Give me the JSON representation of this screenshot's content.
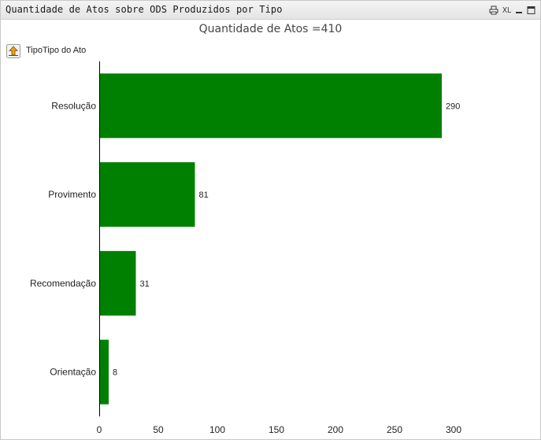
{
  "window": {
    "caption": "Quantidade de Atos sobre ODS Produzidos por Tipo",
    "icons": [
      "print-icon",
      "excel-export-icon",
      "minimize-icon",
      "maximize-icon"
    ],
    "excel_label": "XL"
  },
  "drill": {
    "label": "TipoTipo do Ato",
    "icon": "drill-up-arrow-icon"
  },
  "colors": {
    "bar": "#008000",
    "axis": "#000000"
  },
  "chart_data": {
    "type": "bar",
    "orientation": "horizontal",
    "title": "Quantidade de Atos =410",
    "categories": [
      "Resolução",
      "Provimento",
      "Recomendação",
      "Orientação"
    ],
    "values": [
      290,
      81,
      31,
      8
    ],
    "xlim": [
      0,
      300
    ],
    "xticks": [
      0,
      50,
      100,
      150,
      200,
      250,
      300
    ],
    "xlabel": "",
    "ylabel": "",
    "grid": false,
    "data_labels": true
  }
}
